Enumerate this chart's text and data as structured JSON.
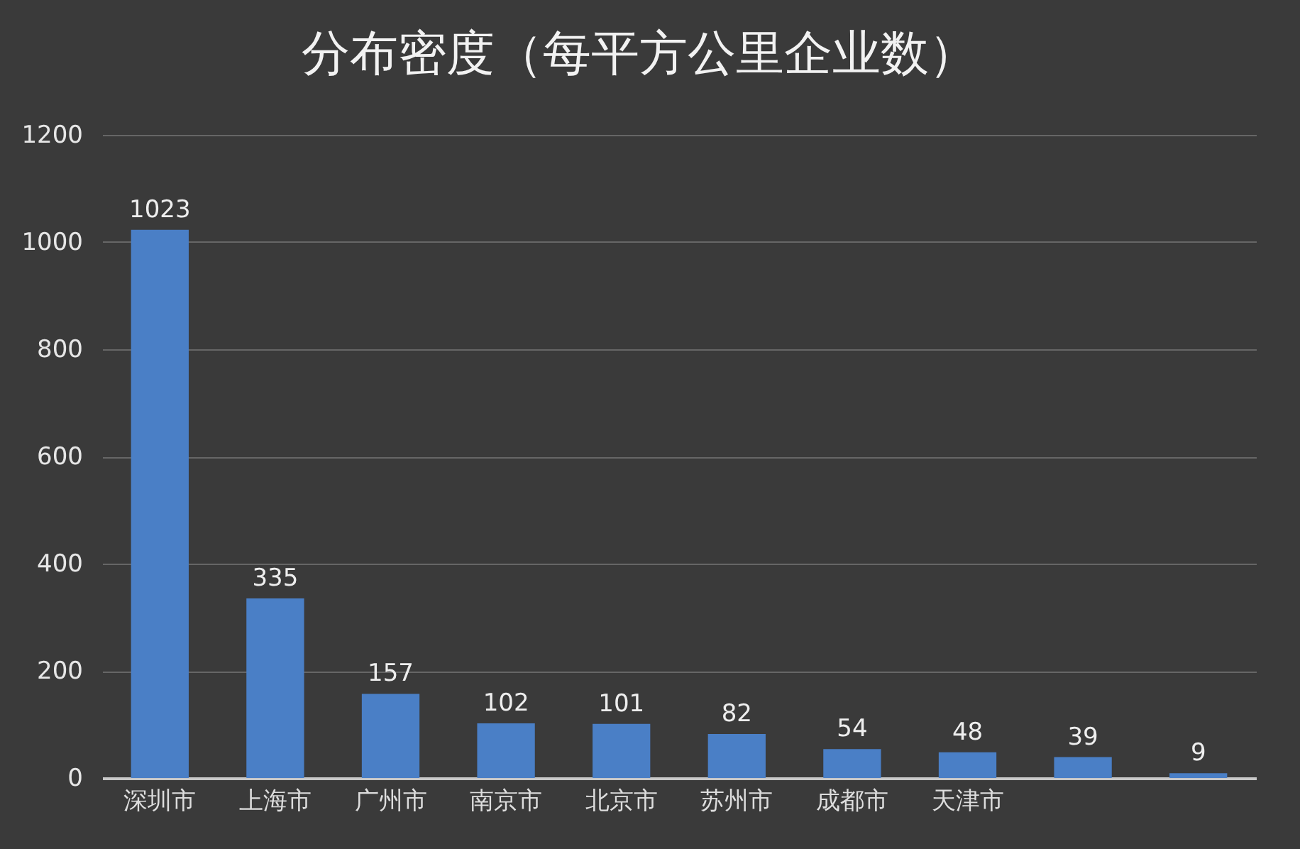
{
  "chart_data": {
    "type": "bar",
    "title": "分布密度（每平方公里企业数）",
    "categories": [
      "深圳市",
      "上海市",
      "广州市",
      "南京市",
      "北京市",
      "苏州市",
      "成都市",
      "天津市",
      null,
      null
    ],
    "values": [
      1023,
      335,
      157,
      102,
      101,
      82,
      54,
      48,
      39,
      9
    ],
    "color": "#4a7fc6",
    "ylim": [
      0,
      1200
    ],
    "yticks": [
      0,
      200,
      400,
      600,
      800,
      1000,
      1200
    ],
    "grid": "y",
    "data_labels": true
  }
}
